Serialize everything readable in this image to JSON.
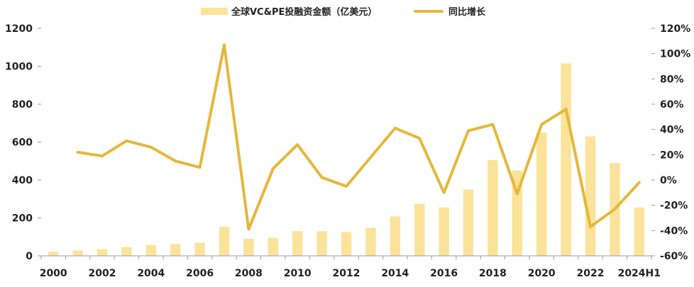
{
  "chart_data": {
    "type": "bar",
    "categories": [
      "2000",
      "2001",
      "2002",
      "2003",
      "2004",
      "2005",
      "2006",
      "2007",
      "2008",
      "2009",
      "2010",
      "2011",
      "2012",
      "2013",
      "2014",
      "2015",
      "2016",
      "2017",
      "2018",
      "2019",
      "2020",
      "2021",
      "2022",
      "2023",
      "2024H1"
    ],
    "x_tick_labels": [
      "2000",
      "2002",
      "2004",
      "2006",
      "2008",
      "2010",
      "2012",
      "2014",
      "2016",
      "2018",
      "2020",
      "2022",
      "2024H1"
    ],
    "series": [
      {
        "name": "全球VC&PE投融资金额（亿美元）",
        "type": "bar",
        "axis": "left",
        "color": "#FBE39A",
        "values": [
          22,
          28,
          35,
          45,
          57,
          63,
          70,
          153,
          90,
          95,
          130,
          130,
          125,
          148,
          208,
          275,
          255,
          350,
          505,
          450,
          650,
          1015,
          630,
          490,
          255
        ]
      },
      {
        "name": "同比增长",
        "type": "line",
        "axis": "right",
        "color": "#E5B83A",
        "values": [
          null,
          22,
          19,
          31,
          26,
          15,
          10,
          107,
          -39,
          9,
          28,
          2,
          -5,
          18,
          41,
          33,
          -10,
          39,
          44,
          -11,
          44,
          56,
          -37,
          -23,
          -2
        ]
      }
    ],
    "y_left": {
      "ylim": [
        0,
        1200
      ],
      "ticks": [
        0,
        200,
        400,
        600,
        800,
        1000,
        1200
      ]
    },
    "y_right": {
      "ylim": [
        -60,
        120
      ],
      "ticks": [
        "-60%",
        "-40%",
        "-20%",
        "0%",
        "20%",
        "40%",
        "60%",
        "80%",
        "100%",
        "120%"
      ]
    },
    "legend": "top-center",
    "grid": false
  }
}
